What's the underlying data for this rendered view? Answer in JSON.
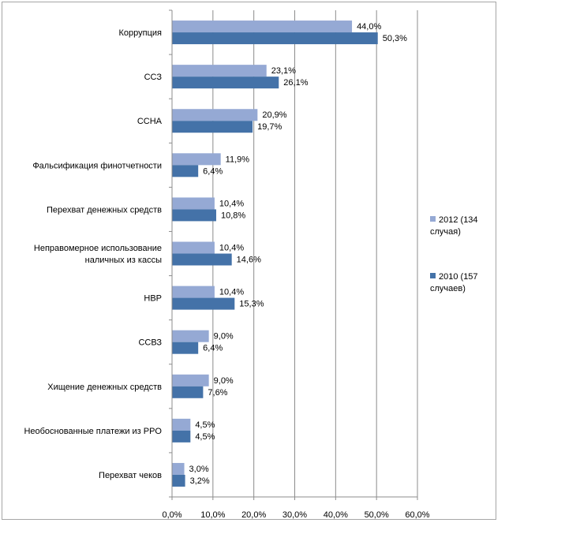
{
  "chart_data": {
    "type": "bar",
    "orientation": "horizontal",
    "title": "",
    "xlabel": "",
    "ylabel": "",
    "xlim": [
      0,
      60
    ],
    "grid": true,
    "legend_position": "right",
    "categories": [
      [
        "Коррупция"
      ],
      [
        "ССЗ"
      ],
      [
        "ССНА"
      ],
      [
        "Фальсификация финотчетности"
      ],
      [
        "Перехват денежных средств"
      ],
      [
        "Неправомерное использование",
        "наличных из кассы"
      ],
      [
        "НВР"
      ],
      [
        "ССВЗ"
      ],
      [
        "Хищение денежных средств"
      ],
      [
        "Необоснованные платежи из PPO"
      ],
      [
        "Перехват чеков"
      ]
    ],
    "x_ticks": [
      0,
      10,
      20,
      30,
      40,
      50,
      60
    ],
    "x_tick_labels": [
      "0,0%",
      "10,0%",
      "20,0%",
      "30,0%",
      "40,0%",
      "50,0%",
      "60,0%"
    ],
    "series": [
      {
        "name": [
          "2012 (134",
          "случая)"
        ],
        "color": "#95a9d4",
        "values": [
          44.0,
          23.1,
          20.9,
          11.9,
          10.4,
          10.4,
          10.4,
          9.0,
          9.0,
          4.5,
          3.0
        ],
        "labels": [
          "44,0%",
          "23,1%",
          "20,9%",
          "11,9%",
          "10,4%",
          "10,4%",
          "10,4%",
          "9,0%",
          "9,0%",
          "4,5%",
          "3,0%"
        ]
      },
      {
        "name": [
          "2010 (157",
          "случаев)"
        ],
        "color": "#4472a8",
        "values": [
          50.3,
          26.1,
          19.7,
          6.4,
          10.8,
          14.6,
          15.3,
          6.4,
          7.6,
          4.5,
          3.2
        ],
        "labels": [
          "50,3%",
          "26,1%",
          "19,7%",
          "6,4%",
          "10,8%",
          "14,6%",
          "15,3%",
          "6,4%",
          "7,6%",
          "4,5%",
          "3,2%"
        ]
      }
    ]
  }
}
